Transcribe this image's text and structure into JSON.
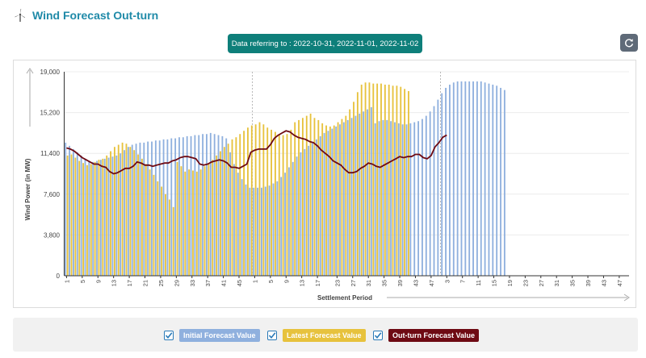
{
  "header": {
    "title": "Wind Forecast Out-turn",
    "icon": "wind-turbine-icon"
  },
  "reference_badge": "Data referring to : 2022-10-31, 2022-11-01, 2022-11-02",
  "refresh_button": {
    "icon": "refresh-icon"
  },
  "colors": {
    "initial": "#8fb0de",
    "latest": "#e7c23d",
    "outturn": "#6e0a13",
    "title": "#1f8aa8",
    "badge": "#0e7f7a"
  },
  "legend": {
    "items": [
      {
        "label": "Initial Forecast Value",
        "checked": true
      },
      {
        "label": "Latest Forecast Value",
        "checked": true
      },
      {
        "label": "Out-turn Forecast Value",
        "checked": true
      }
    ]
  },
  "chart_data": {
    "type": "bar",
    "xlabel": "Settlement Period",
    "ylabel": "Wind Power (in MW)",
    "ylim": [
      0,
      19000
    ],
    "yticks": [
      "0",
      "3,800",
      "7,600",
      "11,400",
      "15,200",
      "19,000"
    ],
    "xtick_every": 4,
    "days": [
      "2022-10-31",
      "2022-11-01",
      "2022-11-02"
    ],
    "grid": "horizontal",
    "series": [
      {
        "name": "Initial Forecast Value",
        "kind": "bar",
        "values": [
          12400,
          12100,
          11800,
          11500,
          11200,
          10900,
          10700,
          10600,
          10700,
          10800,
          10900,
          11000,
          11100,
          11200,
          11400,
          11700,
          12000,
          12200,
          12300,
          12400,
          12400,
          12500,
          12500,
          12600,
          12600,
          12700,
          12700,
          12800,
          12800,
          12900,
          12900,
          13000,
          13000,
          13100,
          13100,
          13200,
          13200,
          13300,
          13200,
          13100,
          13000,
          12800,
          11500,
          10400,
          9600,
          9000,
          8500,
          8200,
          8200,
          8200,
          8200,
          8300,
          8400,
          8600,
          8800,
          9200,
          9600,
          10100,
          10600,
          11100,
          11500,
          11800,
          12100,
          12400,
          12700,
          13000,
          13300,
          13500,
          13700,
          13900,
          14100,
          14300,
          14500,
          14700,
          14900,
          15100,
          15300,
          15500,
          15700,
          14200,
          14400,
          14500,
          14500,
          14400,
          14300,
          14200,
          14100,
          14100,
          14200,
          14300,
          14400,
          14600,
          14900,
          15300,
          15800,
          16400,
          17000,
          17500,
          17800,
          18000,
          18100,
          18100,
          18100,
          18100,
          18100,
          18100,
          18100,
          18000,
          17900,
          17800,
          17700,
          17500,
          17300
        ]
      },
      {
        "name": "Latest Forecast Value",
        "kind": "bar",
        "values": [
          11200,
          11300,
          11000,
          10700,
          10500,
          10300,
          10400,
          10600,
          10800,
          10900,
          11200,
          11600,
          12000,
          12200,
          12400,
          12300,
          12000,
          11700,
          11300,
          10900,
          10400,
          9900,
          9400,
          8800,
          8300,
          7600,
          7100,
          6400,
          10600,
          10200,
          9700,
          9900,
          9800,
          9700,
          9900,
          10200,
          10500,
          10800,
          11200,
          11600,
          12000,
          12300,
          12700,
          12900,
          13200,
          13500,
          13800,
          14000,
          14100,
          14300,
          14100,
          13800,
          13600,
          13400,
          13200,
          13100,
          13200,
          13600,
          14300,
          14500,
          14700,
          14900,
          15100,
          14700,
          14500,
          14200,
          14000,
          13900,
          14000,
          14300,
          14600,
          14900,
          15500,
          16200,
          17100,
          17800,
          18000,
          18000,
          17900,
          17900,
          17900,
          17800,
          17800,
          17700,
          17700,
          17600,
          17400,
          17200
        ]
      },
      {
        "name": "Out-turn Forecast Value",
        "kind": "line",
        "values": [
          11900,
          11800,
          11600,
          11300,
          11000,
          10800,
          10600,
          10400,
          10400,
          10200,
          10100,
          9700,
          9500,
          9600,
          9800,
          10000,
          10000,
          10200,
          10600,
          10500,
          10300,
          10300,
          10200,
          10300,
          10400,
          10500,
          10500,
          10700,
          10800,
          11000,
          11100,
          11100,
          11000,
          10900,
          10400,
          10300,
          10400,
          10600,
          10700,
          10800,
          10700,
          10500,
          10100,
          10100,
          10000,
          10200,
          10400,
          11500,
          11700,
          11800,
          11800,
          11800,
          12200,
          12800,
          13100,
          13300,
          13500,
          13400,
          13100,
          12900,
          12800,
          12700,
          12500,
          12400,
          12100,
          11700,
          11400,
          11100,
          10700,
          10500,
          10300,
          9900,
          9600,
          9600,
          9700,
          10000,
          10200,
          10500,
          10400,
          10200,
          10100,
          10300,
          10500,
          10700,
          10900,
          11100,
          11000,
          11100,
          11100,
          11300,
          11300,
          11000,
          10900,
          11200,
          12000,
          12400,
          12900,
          13100
        ]
      }
    ],
    "xticks": [
      {
        "i": 0,
        "label": "1"
      },
      {
        "i": 4,
        "label": "5"
      },
      {
        "i": 8,
        "label": "9"
      },
      {
        "i": 12,
        "label": "13"
      },
      {
        "i": 16,
        "label": "17"
      },
      {
        "i": 20,
        "label": "21"
      },
      {
        "i": 24,
        "label": "25"
      },
      {
        "i": 28,
        "label": "29"
      },
      {
        "i": 32,
        "label": "33"
      },
      {
        "i": 36,
        "label": "37"
      },
      {
        "i": 40,
        "label": "41"
      },
      {
        "i": 44,
        "label": "45"
      },
      {
        "i": 48,
        "label": "1"
      },
      {
        "i": 52,
        "label": "5"
      },
      {
        "i": 56,
        "label": "9"
      },
      {
        "i": 60,
        "label": "13"
      },
      {
        "i": 64,
        "label": "17"
      },
      {
        "i": 69,
        "label": "23"
      },
      {
        "i": 73,
        "label": "27"
      },
      {
        "i": 77,
        "label": "31"
      },
      {
        "i": 81,
        "label": "35"
      },
      {
        "i": 85,
        "label": "39"
      },
      {
        "i": 89,
        "label": "43"
      },
      {
        "i": 93,
        "label": "47"
      },
      {
        "i": 97,
        "label": "3"
      },
      {
        "i": 101,
        "label": "7"
      },
      {
        "i": 105,
        "label": "11"
      },
      {
        "i": 109,
        "label": "15"
      },
      {
        "i": 113,
        "label": "19"
      },
      {
        "i": 117,
        "label": "23"
      },
      {
        "i": 121,
        "label": "27"
      },
      {
        "i": 125,
        "label": "31"
      },
      {
        "i": 129,
        "label": "35"
      },
      {
        "i": 133,
        "label": "39"
      },
      {
        "i": 137,
        "label": "43"
      },
      {
        "i": 141,
        "label": "47"
      }
    ]
  }
}
